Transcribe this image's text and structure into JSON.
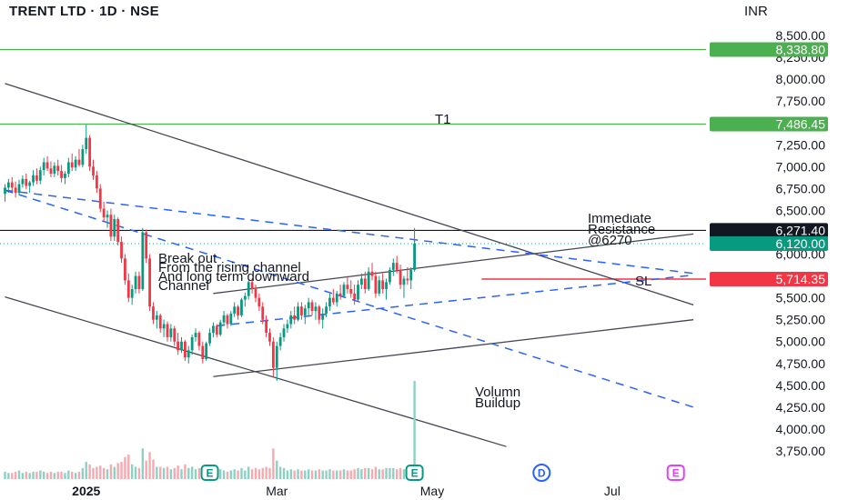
{
  "header": {
    "title": "TRENT LTD · 1D · NSE",
    "currency": "INR"
  },
  "colors": {
    "up": "#089981",
    "down": "#F23645",
    "green_line": "#4CAF50",
    "red_line": "#F23645",
    "black_line": "#131722",
    "trend_line": "#434651",
    "dashed_line": "#2962FF"
  },
  "chart_data": {
    "type": "candlestick",
    "ylim": [
      3650,
      8700
    ],
    "y_ticks": [
      "8,500.00",
      "8,250.00",
      "8,000.00",
      "7,750.00",
      "7,500.00",
      "7,250.00",
      "7,000.00",
      "6,750.00",
      "6,500.00",
      "6,250.00",
      "6,000.00",
      "5,750.00",
      "5,500.00",
      "5,250.00",
      "5,000.00",
      "4,750.00",
      "4,500.00",
      "4,250.00",
      "4,000.00",
      "3,750.00"
    ],
    "y_tick_values": [
      8500,
      8250,
      8000,
      7750,
      7500,
      7250,
      7000,
      6750,
      6500,
      6250,
      6000,
      5750,
      5500,
      5250,
      5000,
      4750,
      4500,
      4250,
      4000,
      3750
    ],
    "x_ticks": [
      {
        "label": "2025",
        "bar": 23,
        "bold": true
      },
      {
        "label": "Mar",
        "bar": 77,
        "bold": false
      },
      {
        "label": "May",
        "bar": 121,
        "bold": false
      },
      {
        "label": "Jul",
        "bar": 172,
        "bold": false
      }
    ],
    "levels": [
      {
        "name": "target",
        "value": 8338.8,
        "label": "8,338.80",
        "color": "#4CAF50"
      },
      {
        "name": "t1",
        "value": 7486.45,
        "label": "7,486.45",
        "color": "#4CAF50"
      },
      {
        "name": "resistance",
        "value": 6271.4,
        "label": "6,271.40",
        "color": "#131722"
      },
      {
        "name": "last",
        "value": 6120.0,
        "label": "6,120.00",
        "color": "#089981"
      },
      {
        "name": "stop-loss",
        "value": 5714.35,
        "label": "5,714.35",
        "color": "#F23645"
      }
    ],
    "events": [
      {
        "label": "E",
        "bar": 58,
        "color": "#089981"
      },
      {
        "label": "E",
        "bar": 116,
        "color": "#089981"
      },
      {
        "label": "D",
        "bar": 152,
        "color": "#2962FF"
      },
      {
        "label": "E",
        "bar": 190,
        "color": "#E040FB"
      }
    ],
    "annotations": [
      {
        "name": "t1-label",
        "text": "T1"
      },
      {
        "name": "resistance-note",
        "text": "Immediate\nResistance\n@6270"
      },
      {
        "name": "sl-label",
        "text": "SL"
      },
      {
        "name": "breakout-note",
        "text": "Break out\nFrom the rising channel\nAnd long term downward\nChannel"
      },
      {
        "name": "volume-note",
        "text": "Volumn\nBuildup"
      }
    ],
    "trendlines": [
      {
        "name": "downchannel-upper",
        "p1": [
          0,
          7950
        ],
        "p2": [
          195,
          5420
        ],
        "style": "solid"
      },
      {
        "name": "downchannel-lower",
        "p1": [
          0,
          5510
        ],
        "p2": [
          142,
          3800
        ],
        "style": "solid"
      },
      {
        "name": "rising-channel-upper",
        "p1": [
          59,
          5550
        ],
        "p2": [
          195,
          6230
        ],
        "style": "solid"
      },
      {
        "name": "rising-channel-lower",
        "p1": [
          59,
          4600
        ],
        "p2": [
          195,
          5250
        ],
        "style": "solid"
      },
      {
        "name": "midline-up",
        "p1": [
          0,
          6730
        ],
        "p2": [
          195,
          5780
        ],
        "style": "dashed"
      },
      {
        "name": "midline-down",
        "p1": [
          60,
          5180
        ],
        "p2": [
          195,
          5760
        ],
        "style": "dashed"
      },
      {
        "name": "long-term-dash",
        "p1": [
          0,
          6730
        ],
        "p2": [
          195,
          4250
        ],
        "style": "dashed"
      }
    ],
    "candles": [
      {
        "o": 6690,
        "h": 6800,
        "l": 6600,
        "c": 6760,
        "v": 0.06
      },
      {
        "o": 6760,
        "h": 6860,
        "l": 6700,
        "c": 6820,
        "v": 0.05
      },
      {
        "o": 6820,
        "h": 6880,
        "l": 6720,
        "c": 6760,
        "v": 0.05
      },
      {
        "o": 6760,
        "h": 6830,
        "l": 6650,
        "c": 6700,
        "v": 0.06
      },
      {
        "o": 6700,
        "h": 6850,
        "l": 6670,
        "c": 6800,
        "v": 0.07
      },
      {
        "o": 6800,
        "h": 6900,
        "l": 6760,
        "c": 6860,
        "v": 0.05
      },
      {
        "o": 6860,
        "h": 6920,
        "l": 6740,
        "c": 6780,
        "v": 0.06
      },
      {
        "o": 6780,
        "h": 6840,
        "l": 6700,
        "c": 6820,
        "v": 0.05
      },
      {
        "o": 6820,
        "h": 6960,
        "l": 6780,
        "c": 6900,
        "v": 0.06
      },
      {
        "o": 6900,
        "h": 6980,
        "l": 6800,
        "c": 6840,
        "v": 0.06
      },
      {
        "o": 6840,
        "h": 7000,
        "l": 6800,
        "c": 6960,
        "v": 0.07
      },
      {
        "o": 6960,
        "h": 7100,
        "l": 6900,
        "c": 7050,
        "v": 0.06
      },
      {
        "o": 7050,
        "h": 7120,
        "l": 6950,
        "c": 6980,
        "v": 0.05
      },
      {
        "o": 6980,
        "h": 7060,
        "l": 6880,
        "c": 6920,
        "v": 0.06
      },
      {
        "o": 6920,
        "h": 7050,
        "l": 6880,
        "c": 7010,
        "v": 0.05
      },
      {
        "o": 7010,
        "h": 7080,
        "l": 6900,
        "c": 6950,
        "v": 0.06
      },
      {
        "o": 6950,
        "h": 7020,
        "l": 6820,
        "c": 6870,
        "v": 0.06
      },
      {
        "o": 6870,
        "h": 6950,
        "l": 6800,
        "c": 6920,
        "v": 0.05
      },
      {
        "o": 6920,
        "h": 7100,
        "l": 6880,
        "c": 7050,
        "v": 0.07
      },
      {
        "o": 7050,
        "h": 7150,
        "l": 6950,
        "c": 6990,
        "v": 0.06
      },
      {
        "o": 6990,
        "h": 7120,
        "l": 6950,
        "c": 7080,
        "v": 0.05
      },
      {
        "o": 7080,
        "h": 7200,
        "l": 7000,
        "c": 7020,
        "v": 0.06
      },
      {
        "o": 7020,
        "h": 7250,
        "l": 6990,
        "c": 7200,
        "v": 0.09
      },
      {
        "o": 7200,
        "h": 7480,
        "l": 7150,
        "c": 7330,
        "v": 0.14
      },
      {
        "o": 7330,
        "h": 7360,
        "l": 6950,
        "c": 7000,
        "v": 0.12
      },
      {
        "o": 7000,
        "h": 7080,
        "l": 6850,
        "c": 6900,
        "v": 0.09
      },
      {
        "o": 6900,
        "h": 6950,
        "l": 6700,
        "c": 6750,
        "v": 0.1
      },
      {
        "o": 6750,
        "h": 6800,
        "l": 6480,
        "c": 6520,
        "v": 0.11
      },
      {
        "o": 6520,
        "h": 6600,
        "l": 6380,
        "c": 6420,
        "v": 0.09
      },
      {
        "o": 6420,
        "h": 6500,
        "l": 6300,
        "c": 6450,
        "v": 0.08
      },
      {
        "o": 6450,
        "h": 6520,
        "l": 6150,
        "c": 6200,
        "v": 0.12
      },
      {
        "o": 6200,
        "h": 6450,
        "l": 6150,
        "c": 6400,
        "v": 0.1
      },
      {
        "o": 6400,
        "h": 6420,
        "l": 6100,
        "c": 6140,
        "v": 0.13
      },
      {
        "o": 6140,
        "h": 6200,
        "l": 5900,
        "c": 5950,
        "v": 0.14
      },
      {
        "o": 5950,
        "h": 6000,
        "l": 5650,
        "c": 5700,
        "v": 0.18
      },
      {
        "o": 5700,
        "h": 5780,
        "l": 5450,
        "c": 5500,
        "v": 0.2
      },
      {
        "o": 5500,
        "h": 5650,
        "l": 5420,
        "c": 5600,
        "v": 0.12
      },
      {
        "o": 5600,
        "h": 5800,
        "l": 5550,
        "c": 5750,
        "v": 0.1
      },
      {
        "o": 5750,
        "h": 5800,
        "l": 5550,
        "c": 5600,
        "v": 0.09
      },
      {
        "o": 5600,
        "h": 6300,
        "l": 5580,
        "c": 6250,
        "v": 0.25
      },
      {
        "o": 6250,
        "h": 6280,
        "l": 5900,
        "c": 5950,
        "v": 0.15
      },
      {
        "o": 5950,
        "h": 6000,
        "l": 5350,
        "c": 5400,
        "v": 0.22
      },
      {
        "o": 5400,
        "h": 5450,
        "l": 5200,
        "c": 5250,
        "v": 0.16
      },
      {
        "o": 5250,
        "h": 5350,
        "l": 5150,
        "c": 5300,
        "v": 0.1
      },
      {
        "o": 5300,
        "h": 5320,
        "l": 5100,
        "c": 5150,
        "v": 0.1
      },
      {
        "o": 5150,
        "h": 5250,
        "l": 5050,
        "c": 5200,
        "v": 0.09
      },
      {
        "o": 5200,
        "h": 5230,
        "l": 5000,
        "c": 5050,
        "v": 0.1
      },
      {
        "o": 5050,
        "h": 5200,
        "l": 5000,
        "c": 5150,
        "v": 0.08
      },
      {
        "o": 5150,
        "h": 5180,
        "l": 4950,
        "c": 5000,
        "v": 0.09
      },
      {
        "o": 5000,
        "h": 5100,
        "l": 4850,
        "c": 4900,
        "v": 0.11
      },
      {
        "o": 4900,
        "h": 5050,
        "l": 4870,
        "c": 5000,
        "v": 0.08
      },
      {
        "o": 5000,
        "h": 5020,
        "l": 4780,
        "c": 4820,
        "v": 0.12
      },
      {
        "o": 4820,
        "h": 4950,
        "l": 4750,
        "c": 4900,
        "v": 0.09
      },
      {
        "o": 4900,
        "h": 5080,
        "l": 4850,
        "c": 5050,
        "v": 0.1
      },
      {
        "o": 5050,
        "h": 5150,
        "l": 5000,
        "c": 5100,
        "v": 0.08
      },
      {
        "o": 5100,
        "h": 5120,
        "l": 4900,
        "c": 4950,
        "v": 0.09
      },
      {
        "o": 4950,
        "h": 5000,
        "l": 4750,
        "c": 4800,
        "v": 0.11
      },
      {
        "o": 4800,
        "h": 5000,
        "l": 4780,
        "c": 4980,
        "v": 0.09
      },
      {
        "o": 4980,
        "h": 5150,
        "l": 4950,
        "c": 5100,
        "v": 0.08
      },
      {
        "o": 5100,
        "h": 5220,
        "l": 5050,
        "c": 5180,
        "v": 0.07
      },
      {
        "o": 5180,
        "h": 5200,
        "l": 5050,
        "c": 5080,
        "v": 0.07
      },
      {
        "o": 5080,
        "h": 5250,
        "l": 5060,
        "c": 5220,
        "v": 0.08
      },
      {
        "o": 5220,
        "h": 5350,
        "l": 5180,
        "c": 5300,
        "v": 0.07
      },
      {
        "o": 5300,
        "h": 5320,
        "l": 5150,
        "c": 5200,
        "v": 0.06
      },
      {
        "o": 5200,
        "h": 5350,
        "l": 5180,
        "c": 5320,
        "v": 0.07
      },
      {
        "o": 5320,
        "h": 5450,
        "l": 5280,
        "c": 5400,
        "v": 0.08
      },
      {
        "o": 5400,
        "h": 5420,
        "l": 5250,
        "c": 5300,
        "v": 0.07
      },
      {
        "o": 5300,
        "h": 5500,
        "l": 5280,
        "c": 5480,
        "v": 0.09
      },
      {
        "o": 5480,
        "h": 5560,
        "l": 5400,
        "c": 5520,
        "v": 0.07
      },
      {
        "o": 5520,
        "h": 5700,
        "l": 5480,
        "c": 5680,
        "v": 0.1
      },
      {
        "o": 5680,
        "h": 5720,
        "l": 5550,
        "c": 5600,
        "v": 0.08
      },
      {
        "o": 5600,
        "h": 5650,
        "l": 5450,
        "c": 5500,
        "v": 0.09
      },
      {
        "o": 5500,
        "h": 5550,
        "l": 5350,
        "c": 5400,
        "v": 0.08
      },
      {
        "o": 5400,
        "h": 5450,
        "l": 5200,
        "c": 5250,
        "v": 0.09
      },
      {
        "o": 5250,
        "h": 5300,
        "l": 5050,
        "c": 5100,
        "v": 0.1
      },
      {
        "o": 5100,
        "h": 5150,
        "l": 4950,
        "c": 5000,
        "v": 0.09
      },
      {
        "o": 5000,
        "h": 5050,
        "l": 4600,
        "c": 4700,
        "v": 0.25
      },
      {
        "o": 4700,
        "h": 5000,
        "l": 4550,
        "c": 4950,
        "v": 0.15
      },
      {
        "o": 4950,
        "h": 5100,
        "l": 4900,
        "c": 5050,
        "v": 0.1
      },
      {
        "o": 5050,
        "h": 5200,
        "l": 5000,
        "c": 5150,
        "v": 0.09
      },
      {
        "o": 5150,
        "h": 5250,
        "l": 5100,
        "c": 5200,
        "v": 0.07
      },
      {
        "o": 5200,
        "h": 5350,
        "l": 5150,
        "c": 5300,
        "v": 0.08
      },
      {
        "o": 5300,
        "h": 5400,
        "l": 5200,
        "c": 5250,
        "v": 0.07
      },
      {
        "o": 5250,
        "h": 5450,
        "l": 5230,
        "c": 5400,
        "v": 0.08
      },
      {
        "o": 5400,
        "h": 5450,
        "l": 5250,
        "c": 5300,
        "v": 0.07
      },
      {
        "o": 5300,
        "h": 5420,
        "l": 5200,
        "c": 5380,
        "v": 0.07
      },
      {
        "o": 5380,
        "h": 5500,
        "l": 5300,
        "c": 5450,
        "v": 0.08
      },
      {
        "o": 5450,
        "h": 5480,
        "l": 5300,
        "c": 5350,
        "v": 0.07
      },
      {
        "o": 5350,
        "h": 5450,
        "l": 5250,
        "c": 5400,
        "v": 0.07
      },
      {
        "o": 5400,
        "h": 5420,
        "l": 5200,
        "c": 5250,
        "v": 0.08
      },
      {
        "o": 5250,
        "h": 5380,
        "l": 5150,
        "c": 5320,
        "v": 0.07
      },
      {
        "o": 5320,
        "h": 5450,
        "l": 5280,
        "c": 5400,
        "v": 0.07
      },
      {
        "o": 5400,
        "h": 5550,
        "l": 5350,
        "c": 5500,
        "v": 0.08
      },
      {
        "o": 5500,
        "h": 5600,
        "l": 5420,
        "c": 5450,
        "v": 0.07
      },
      {
        "o": 5450,
        "h": 5580,
        "l": 5400,
        "c": 5550,
        "v": 0.07
      },
      {
        "o": 5550,
        "h": 5650,
        "l": 5480,
        "c": 5520,
        "v": 0.07
      },
      {
        "o": 5520,
        "h": 5680,
        "l": 5500,
        "c": 5650,
        "v": 0.08
      },
      {
        "o": 5650,
        "h": 5750,
        "l": 5550,
        "c": 5600,
        "v": 0.07
      },
      {
        "o": 5600,
        "h": 5700,
        "l": 5500,
        "c": 5550,
        "v": 0.07
      },
      {
        "o": 5550,
        "h": 5650,
        "l": 5420,
        "c": 5480,
        "v": 0.08
      },
      {
        "o": 5480,
        "h": 5700,
        "l": 5450,
        "c": 5650,
        "v": 0.09
      },
      {
        "o": 5650,
        "h": 5780,
        "l": 5600,
        "c": 5720,
        "v": 0.08
      },
      {
        "o": 5720,
        "h": 5800,
        "l": 5550,
        "c": 5600,
        "v": 0.09
      },
      {
        "o": 5600,
        "h": 5850,
        "l": 5580,
        "c": 5800,
        "v": 0.09
      },
      {
        "o": 5800,
        "h": 5900,
        "l": 5700,
        "c": 5750,
        "v": 0.08
      },
      {
        "o": 5750,
        "h": 5800,
        "l": 5500,
        "c": 5550,
        "v": 0.1
      },
      {
        "o": 5550,
        "h": 5750,
        "l": 5520,
        "c": 5700,
        "v": 0.08
      },
      {
        "o": 5700,
        "h": 5780,
        "l": 5550,
        "c": 5600,
        "v": 0.08
      },
      {
        "o": 5600,
        "h": 5720,
        "l": 5480,
        "c": 5680,
        "v": 0.09
      },
      {
        "o": 5680,
        "h": 5850,
        "l": 5650,
        "c": 5820,
        "v": 0.09
      },
      {
        "o": 5820,
        "h": 5950,
        "l": 5750,
        "c": 5900,
        "v": 0.09
      },
      {
        "o": 5900,
        "h": 5980,
        "l": 5780,
        "c": 5820,
        "v": 0.08
      },
      {
        "o": 5820,
        "h": 5880,
        "l": 5600,
        "c": 5650,
        "v": 0.09
      },
      {
        "o": 5650,
        "h": 5750,
        "l": 5500,
        "c": 5720,
        "v": 0.08
      },
      {
        "o": 5720,
        "h": 5850,
        "l": 5650,
        "c": 5700,
        "v": 0.08
      },
      {
        "o": 5700,
        "h": 5850,
        "l": 5600,
        "c": 5820,
        "v": 0.09
      },
      {
        "o": 5820,
        "h": 6300,
        "l": 5800,
        "c": 6120,
        "v": 0.8
      }
    ]
  }
}
